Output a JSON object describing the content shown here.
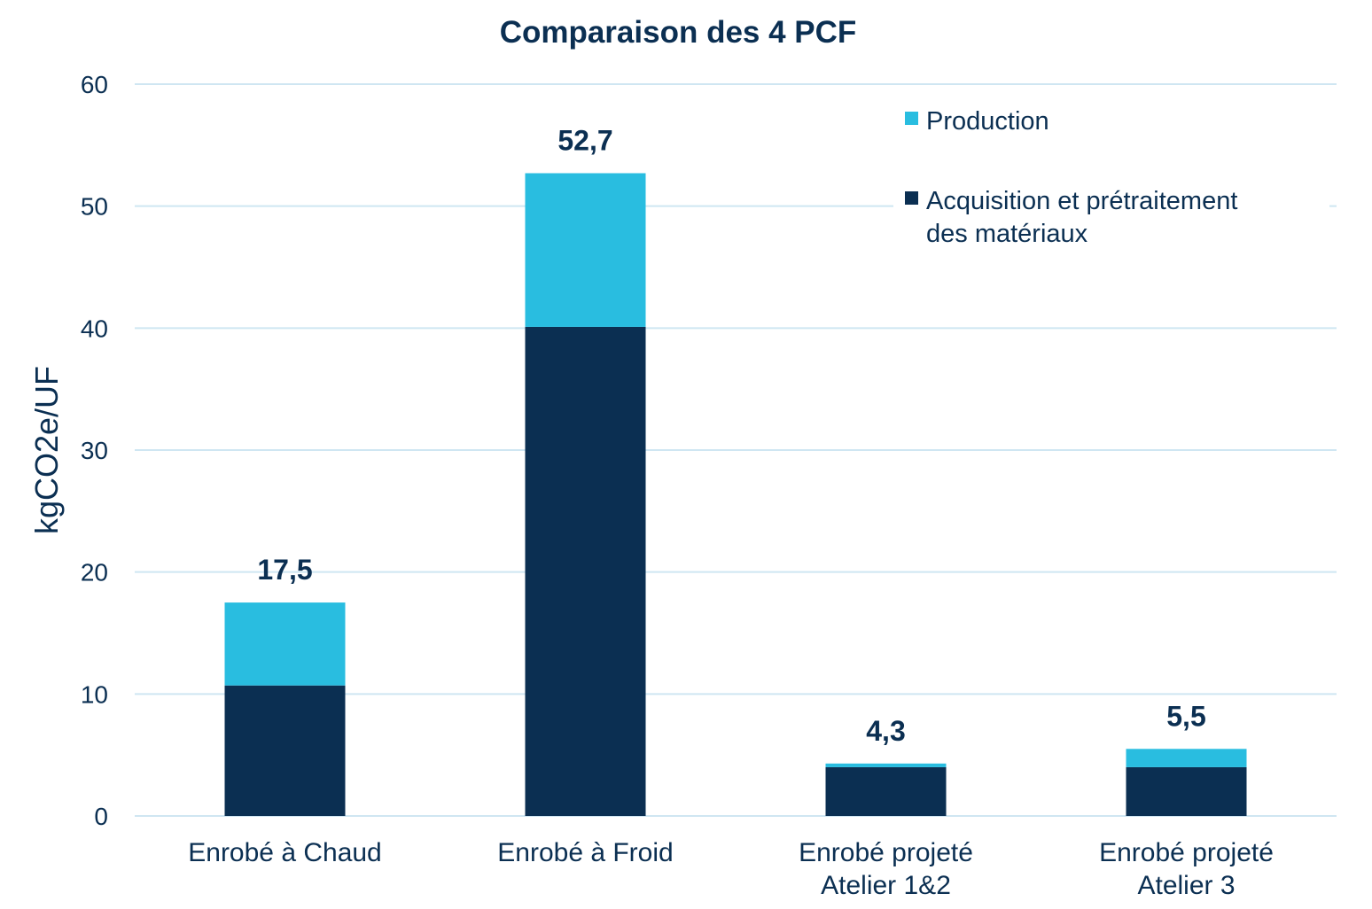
{
  "chart_data": {
    "type": "bar",
    "stacked": true,
    "title": "Comparaison des 4 PCF",
    "ylabel": "kgCO2e/UF",
    "xlabel": "",
    "ylim": [
      0,
      60
    ],
    "yticks": [
      "0",
      "10",
      "20",
      "30",
      "40",
      "50",
      "60"
    ],
    "grid": true,
    "legend_position": "top-right",
    "categories": [
      [
        "Enrobé à Chaud"
      ],
      [
        "Enrobé à Froid"
      ],
      [
        "Enrobé projeté",
        "Atelier 1&2"
      ],
      [
        "Enrobé projeté",
        "Atelier 3"
      ]
    ],
    "series": [
      {
        "name": "Acquisition et prétraitement des matériaux",
        "legend_lines": [
          "Acquisition et prétraitement",
          "des matériaux"
        ],
        "color": "#0b2f52",
        "values": [
          10.7,
          40.1,
          4.0,
          4.0
        ]
      },
      {
        "name": "Production",
        "legend_lines": [
          "Production"
        ],
        "color": "#29bde0",
        "values": [
          6.8,
          12.6,
          0.3,
          1.5
        ]
      }
    ],
    "totals": [
      "17,5",
      "52,7",
      "4,3",
      "5,5"
    ],
    "grid_color": "#cfe6f2"
  }
}
